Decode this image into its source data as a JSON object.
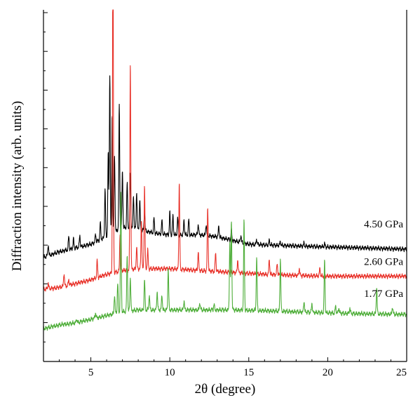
{
  "chart_data": {
    "type": "line",
    "xlabel": "2θ (degree)",
    "ylabel": "Diffraction intensity (arb. units)",
    "xlim": [
      2,
      25
    ],
    "xticks": [
      5,
      10,
      15,
      20,
      25
    ],
    "grid": false,
    "series": [
      {
        "name": "4.50 GPa",
        "color": "#000000",
        "baseline": [
          [
            2,
            2.4
          ],
          [
            3,
            2.55
          ],
          [
            4,
            2.65
          ],
          [
            5,
            2.75
          ],
          [
            6,
            2.95
          ],
          [
            7,
            3.2
          ],
          [
            8,
            3.15
          ],
          [
            9,
            3.05
          ],
          [
            10,
            3.0
          ],
          [
            11,
            3.0
          ],
          [
            12,
            3.0
          ],
          [
            13,
            2.95
          ],
          [
            14,
            2.85
          ],
          [
            15,
            2.75
          ],
          [
            17,
            2.72
          ],
          [
            20,
            2.68
          ],
          [
            25,
            2.62
          ]
        ],
        "peaks": [
          [
            2.3,
            0.3
          ],
          [
            3.6,
            0.35
          ],
          [
            3.9,
            0.25
          ],
          [
            4.3,
            0.3
          ],
          [
            5.3,
            0.2
          ],
          [
            5.6,
            0.45
          ],
          [
            5.9,
            1.3
          ],
          [
            6.1,
            2.2
          ],
          [
            6.2,
            4.3
          ],
          [
            6.35,
            3.2
          ],
          [
            6.5,
            2.0
          ],
          [
            6.8,
            3.3
          ],
          [
            7.0,
            1.5
          ],
          [
            7.3,
            1.2
          ],
          [
            7.5,
            1.5
          ],
          [
            7.7,
            0.9
          ],
          [
            7.9,
            1.0
          ],
          [
            8.1,
            0.8
          ],
          [
            8.4,
            0.5
          ],
          [
            9.0,
            0.4
          ],
          [
            9.5,
            0.35
          ],
          [
            10.0,
            0.6
          ],
          [
            10.2,
            0.5
          ],
          [
            10.5,
            0.45
          ],
          [
            10.9,
            0.4
          ],
          [
            11.2,
            0.4
          ],
          [
            11.8,
            0.3
          ],
          [
            12.3,
            0.3
          ],
          [
            13.1,
            0.3
          ],
          [
            13.9,
            0.25
          ],
          [
            14.5,
            0.2
          ],
          [
            15.5,
            0.15
          ],
          [
            16.3,
            0.12
          ],
          [
            17.0,
            0.1
          ],
          [
            18.5,
            0.08
          ],
          [
            19.8,
            0.08
          ]
        ]
      },
      {
        "name": "2.60 GPa",
        "color": "#e8322a",
        "baseline": [
          [
            2,
            1.55
          ],
          [
            3,
            1.6
          ],
          [
            4,
            1.7
          ],
          [
            5,
            1.8
          ],
          [
            6,
            1.95
          ],
          [
            7,
            2.05
          ],
          [
            8,
            2.1
          ],
          [
            9,
            2.1
          ],
          [
            10,
            2.1
          ],
          [
            12,
            2.05
          ],
          [
            14,
            2.0
          ],
          [
            16,
            1.95
          ],
          [
            18,
            1.92
          ],
          [
            20,
            1.9
          ],
          [
            22,
            1.9
          ],
          [
            25,
            1.9
          ]
        ],
        "peaks": [
          [
            2.3,
            0.15
          ],
          [
            3.3,
            0.35
          ],
          [
            3.6,
            0.15
          ],
          [
            5.4,
            0.45
          ],
          [
            6.4,
            9.0
          ],
          [
            6.85,
            1.0
          ],
          [
            7.5,
            5.5
          ],
          [
            7.9,
            0.6
          ],
          [
            8.2,
            1.3
          ],
          [
            8.4,
            2.2
          ],
          [
            8.6,
            0.5
          ],
          [
            10.6,
            2.3
          ],
          [
            11.8,
            0.5
          ],
          [
            12.4,
            1.7
          ],
          [
            12.9,
            0.5
          ],
          [
            14.3,
            0.35
          ],
          [
            16.3,
            0.4
          ],
          [
            16.8,
            0.3
          ],
          [
            18.2,
            0.2
          ],
          [
            19.5,
            0.2
          ]
        ]
      },
      {
        "name": "1.77 GPa",
        "color": "#4fae3a",
        "baseline": [
          [
            2,
            0.5
          ],
          [
            3,
            0.6
          ],
          [
            4,
            0.65
          ],
          [
            5,
            0.75
          ],
          [
            6,
            0.85
          ],
          [
            7,
            0.95
          ],
          [
            8,
            1.0
          ],
          [
            9,
            1.0
          ],
          [
            10,
            1.0
          ],
          [
            11,
            1.0
          ],
          [
            12,
            1.0
          ],
          [
            14,
            1.0
          ],
          [
            16,
            0.98
          ],
          [
            18,
            0.95
          ],
          [
            20,
            0.92
          ],
          [
            22,
            0.9
          ],
          [
            25,
            0.88
          ]
        ],
        "peaks": [
          [
            4.1,
            0.1
          ],
          [
            5.3,
            0.15
          ],
          [
            6.5,
            0.5
          ],
          [
            6.7,
            0.8
          ],
          [
            6.9,
            3.2
          ],
          [
            7.3,
            1.5
          ],
          [
            7.5,
            0.9
          ],
          [
            8.4,
            0.8
          ],
          [
            8.7,
            0.4
          ],
          [
            9.2,
            0.5
          ],
          [
            9.5,
            0.4
          ],
          [
            9.9,
            1.1
          ],
          [
            10.9,
            0.25
          ],
          [
            11.9,
            0.2
          ],
          [
            12.8,
            0.15
          ],
          [
            13.8,
            1.8
          ],
          [
            13.9,
            2.4
          ],
          [
            14.7,
            2.4
          ],
          [
            15.5,
            1.4
          ],
          [
            17.0,
            1.4
          ],
          [
            18.5,
            0.3
          ],
          [
            19.0,
            0.25
          ],
          [
            19.8,
            1.4
          ],
          [
            20.5,
            0.2
          ],
          [
            20.7,
            0.15
          ],
          [
            21.4,
            0.15
          ],
          [
            23.1,
            0.7
          ],
          [
            24.1,
            0.2
          ]
        ]
      }
    ]
  }
}
